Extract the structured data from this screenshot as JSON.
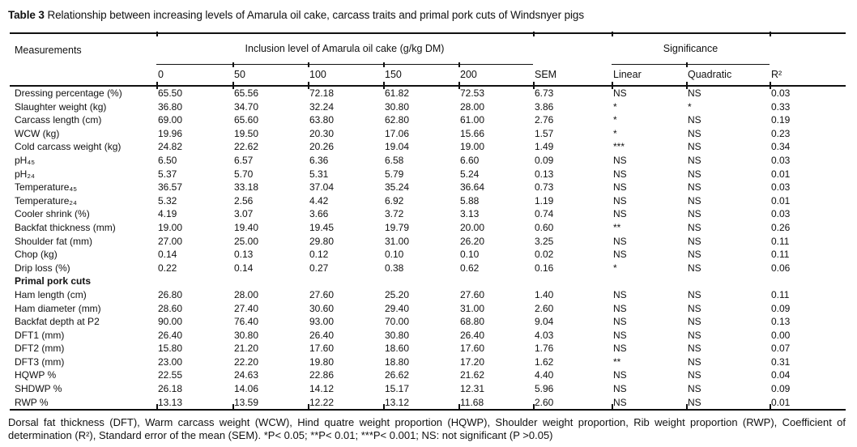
{
  "title": {
    "bold": "Table 3",
    "rest": " Relationship between increasing levels of Amarula oil cake, carcass traits and primal pork cuts of Windsnyer pigs"
  },
  "table": {
    "measurements_header": "Measurements",
    "inclusion_header": "Inclusion level of Amarula oil cake (g/kg DM)",
    "significance_header": "Significance",
    "sub_headers": [
      "0",
      "50",
      "100",
      "150",
      "200",
      "SEM",
      "Linear",
      "Quadratic",
      "R²"
    ],
    "rows": [
      {
        "label": "Dressing percentage (%)",
        "values": [
          "65.50",
          "65.56",
          "72.18",
          "61.82",
          "72.53",
          "6.73",
          "NS",
          "NS",
          "0.03"
        ]
      },
      {
        "label": "Slaughter weight (kg)",
        "values": [
          "36.80",
          "34.70",
          "32.24",
          "30.80",
          "28.00",
          "3.86",
          "*",
          "*",
          "0.33"
        ]
      },
      {
        "label": "Carcass length (cm)",
        "values": [
          "69.00",
          "65.60",
          "63.80",
          "62.80",
          "61.00",
          "2.76",
          "*",
          "NS",
          "0.19"
        ]
      },
      {
        "label": "WCW (kg)",
        "values": [
          "19.96",
          "19.50",
          "20.30",
          "17.06",
          "15.66",
          "1.57",
          "*",
          "NS",
          "0.23"
        ]
      },
      {
        "label": "Cold carcass weight (kg)",
        "values": [
          "24.82",
          "22.62",
          "20.26",
          "19.04",
          "19.00",
          "1.49",
          "***",
          "NS",
          "0.34"
        ]
      },
      {
        "label": "pH₄₅",
        "values": [
          "6.50",
          "6.57",
          "6.36",
          "6.58",
          "6.60",
          "0.09",
          "NS",
          "NS",
          "0.03"
        ]
      },
      {
        "label": "pH₂₄",
        "values": [
          "5.37",
          "5.70",
          "5.31",
          "5.79",
          "5.24",
          "0.13",
          "NS",
          "NS",
          "0.01"
        ]
      },
      {
        "label": "Temperature₄₅",
        "values": [
          "36.57",
          "33.18",
          "37.04",
          "35.24",
          "36.64",
          "0.73",
          "NS",
          "NS",
          "0.03"
        ]
      },
      {
        "label": "Temperature₂₄",
        "values": [
          "5.32",
          "2.56",
          "4.42",
          "6.92",
          "5.88",
          "1.19",
          "NS",
          "NS",
          "0.01"
        ]
      },
      {
        "label": "Cooler shrink (%)",
        "values": [
          "4.19",
          "3.07",
          "3.66",
          "3.72",
          "3.13",
          "0.74",
          "NS",
          "NS",
          "0.03"
        ]
      },
      {
        "label": "Backfat thickness (mm)",
        "values": [
          "19.00",
          "19.40",
          "19.45",
          "19.79",
          "20.00",
          "0.60",
          "**",
          "NS",
          "0.26"
        ]
      },
      {
        "label": "Shoulder fat (mm)",
        "values": [
          "27.00",
          "25.00",
          "29.80",
          "31.00",
          "26.20",
          "3.25",
          "NS",
          "NS",
          "0.11"
        ]
      },
      {
        "label": "Chop (kg)",
        "values": [
          "0.14",
          "0.13",
          "0.12",
          "0.10",
          "0.10",
          "0.02",
          "NS",
          "NS",
          "0.11"
        ]
      },
      {
        "label": "Drip loss (%)",
        "values": [
          "0.22",
          "0.14",
          "0.27",
          "0.38",
          "0.62",
          "0.16",
          "*",
          "NS",
          "0.06"
        ]
      },
      {
        "label": "Primal pork cuts",
        "group": true,
        "values": [
          "",
          "",
          "",
          "",
          "",
          "",
          "",
          "",
          ""
        ]
      },
      {
        "label": "Ham length (cm)",
        "values": [
          "26.80",
          "28.00",
          "27.60",
          "25.20",
          "27.60",
          "1.40",
          "NS",
          "NS",
          "0.11"
        ]
      },
      {
        "label": "Ham diameter (mm)",
        "values": [
          "28.60",
          "27.40",
          "30.60",
          "29.40",
          "31.00",
          "2.60",
          "NS",
          "NS",
          "0.09"
        ]
      },
      {
        "label": "Backfat depth at P2",
        "values": [
          "90.00",
          "76.40",
          "93.00",
          "70.00",
          "68.80",
          "9.04",
          "NS",
          "NS",
          "0.13"
        ]
      },
      {
        "label": "DFT1 (mm)",
        "values": [
          "26.40",
          "30.80",
          "26.40",
          "30.80",
          "26.40",
          "4.03",
          "NS",
          "NS",
          "0.00"
        ]
      },
      {
        "label": "DFT2 (mm)",
        "values": [
          "15.80",
          "21.20",
          "17.60",
          "18.60",
          "17.60",
          "1.76",
          "NS",
          "NS",
          "0.07"
        ]
      },
      {
        "label": "DFT3 (mm)",
        "values": [
          "23.00",
          "22.20",
          "19.80",
          "18.80",
          "17.20",
          "1.62",
          "**",
          "NS",
          "0.31"
        ]
      },
      {
        "label": "HQWP %",
        "values": [
          "22.55",
          "24.63",
          "22.86",
          "26.62",
          "21.62",
          "4.40",
          "NS",
          "NS",
          "0.04"
        ]
      },
      {
        "label": "SHDWP %",
        "values": [
          "26.18",
          "14.06",
          "14.12",
          "15.17",
          "12.31",
          "5.96",
          "NS",
          "NS",
          "0.09"
        ]
      },
      {
        "label": "RWP %",
        "values": [
          "13.13",
          "13.59",
          "12.22",
          "13.12",
          "11.68",
          "2.60",
          "NS",
          "NS",
          "0.01"
        ]
      }
    ]
  },
  "footnote": "Dorsal fat thickness (DFT), Warm carcass weight (WCW), Hind quatre weight proportion (HQWP), Shoulder weight proportion, Rib weight proportion (RWP), Coefficient of determination (R²), Standard error of the mean (SEM). *P< 0.05; **P< 0.01; ***P< 0.001; NS: not significant (P >0.05)"
}
